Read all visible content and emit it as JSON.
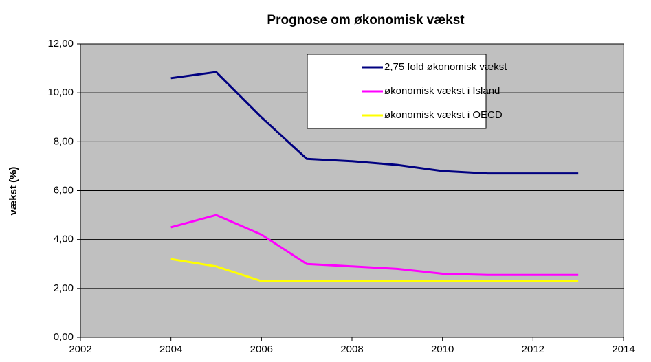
{
  "chart_data": {
    "type": "line",
    "title": "Prognose om økonomisk vækst",
    "y_label": "vækst (%)",
    "x": [
      2004,
      2005,
      2006,
      2007,
      2008,
      2009,
      2010,
      2011,
      2012,
      2013
    ],
    "series": [
      {
        "name": "2,75 fold økonomisk vækst",
        "color": "#000080",
        "values": [
          10.6,
          10.85,
          9.0,
          7.3,
          7.2,
          7.05,
          6.8,
          6.7,
          6.7,
          6.7
        ]
      },
      {
        "name": "økonomisk vækst i Island",
        "color": "#ff00ff",
        "values": [
          4.5,
          5.0,
          4.2,
          3.0,
          2.9,
          2.8,
          2.6,
          2.55,
          2.55,
          2.55
        ]
      },
      {
        "name": "økonomisk vækst i OECD",
        "color": "#ffff00",
        "values": [
          3.2,
          2.9,
          2.3,
          2.3,
          2.3,
          2.3,
          2.3,
          2.3,
          2.3,
          2.3
        ]
      }
    ],
    "xlim": [
      2002,
      2014
    ],
    "xticks": [
      2002,
      2004,
      2006,
      2008,
      2010,
      2012,
      2014
    ],
    "ylim": [
      0,
      12
    ],
    "yticks": [
      {
        "value": 0,
        "label": "0,00"
      },
      {
        "value": 2,
        "label": "2,00"
      },
      {
        "value": 4,
        "label": "4,00"
      },
      {
        "value": 6,
        "label": "6,00"
      },
      {
        "value": 8,
        "label": "8,00"
      },
      {
        "value": 10,
        "label": "10,00"
      },
      {
        "value": 12,
        "label": "12,00"
      }
    ],
    "grid": true,
    "legend": "upper right",
    "background": "#c0c0c0"
  }
}
